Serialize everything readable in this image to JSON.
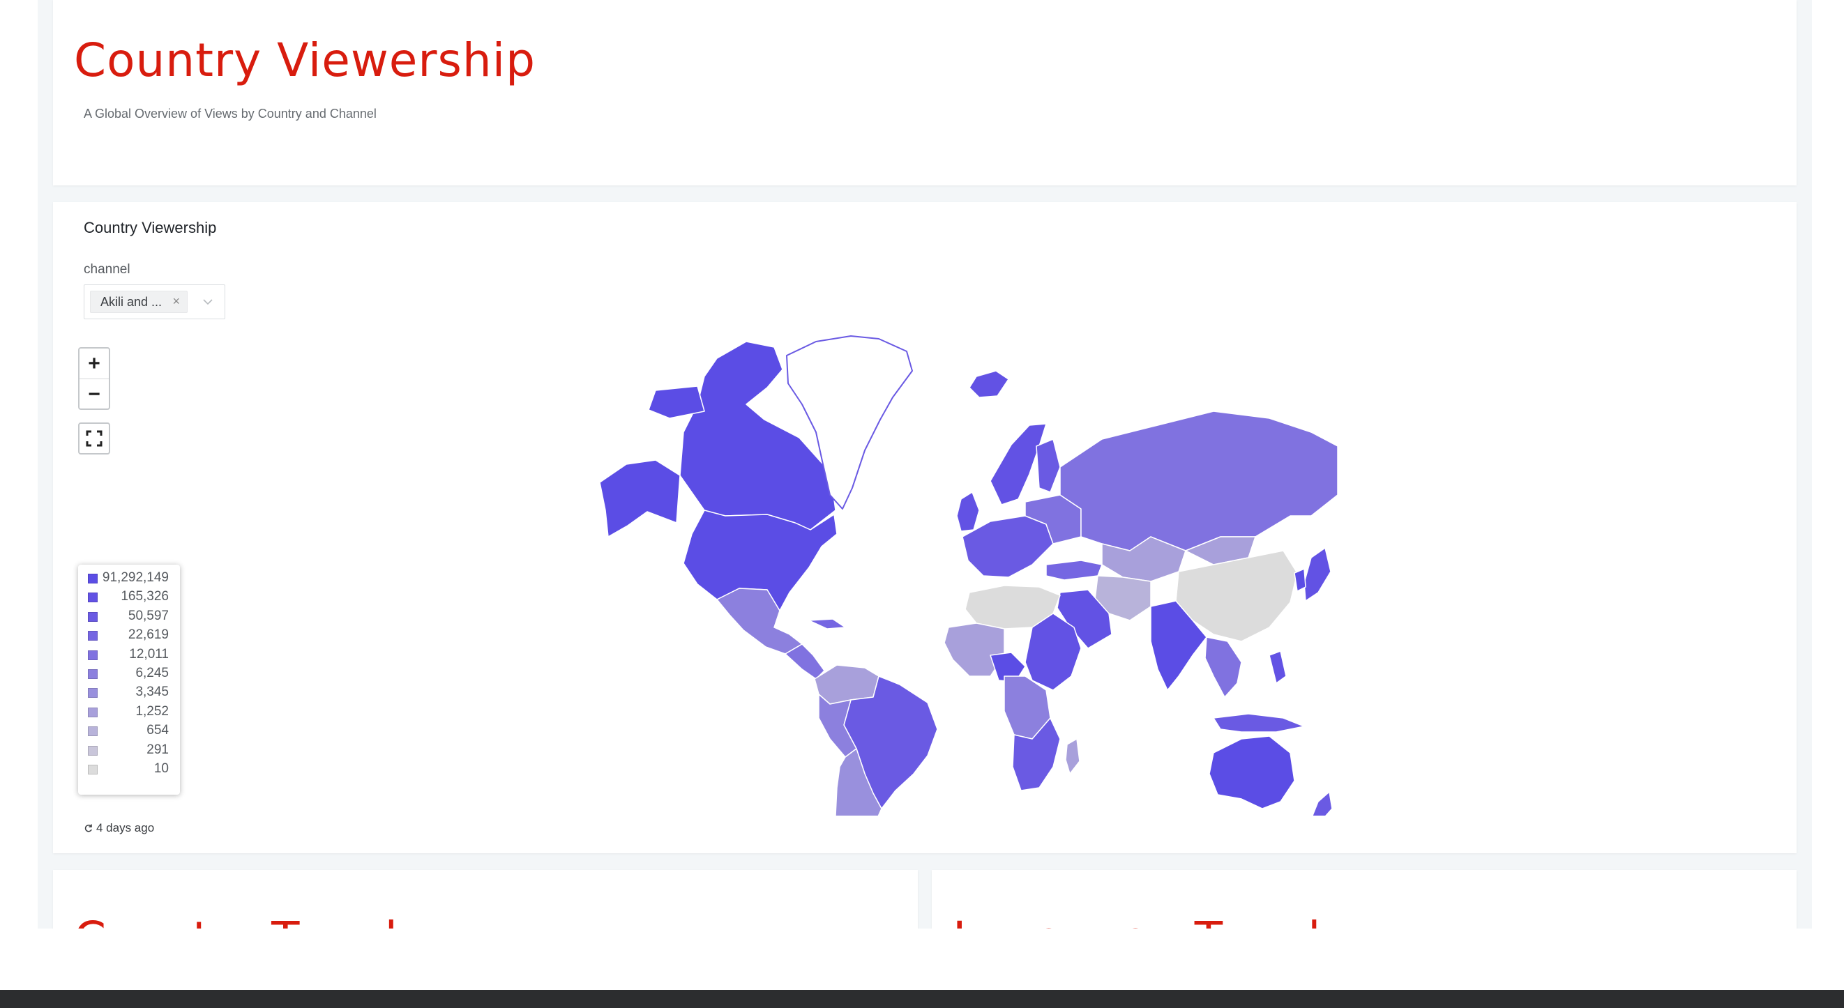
{
  "header": {
    "title": "Country Viewership",
    "subtitle": "A Global Overview of Views by Country and Channel"
  },
  "map_panel": {
    "title": "Country Viewership",
    "filter": {
      "label": "channel",
      "selected_tag": "Akili and ...",
      "remove_glyph": "×",
      "dropdown_icon": "chevron-down-icon"
    },
    "zoom_in_label": "+",
    "zoom_out_label": "−",
    "fullscreen_icon": "fullscreen-icon",
    "refresh_text": "4 days ago"
  },
  "colors": {
    "title_red": "#d81c0e",
    "scale_max": "#5b4de5",
    "scale_min": "#dcdcdc",
    "greenland": "#ffffff"
  },
  "chart_data": {
    "type": "choropleth-map",
    "legend": [
      {
        "label": "91,292,149",
        "color": "#5b4de5"
      },
      {
        "label": "165,326",
        "color": "#6252e4"
      },
      {
        "label": "50,597",
        "color": "#6a5ae3"
      },
      {
        "label": "22,619",
        "color": "#7566e2"
      },
      {
        "label": "12,011",
        "color": "#8072e0"
      },
      {
        "label": "6,245",
        "color": "#8c80de"
      },
      {
        "label": "3,345",
        "color": "#9990dd"
      },
      {
        "label": "1,252",
        "color": "#a8a0db"
      },
      {
        "label": "654",
        "color": "#b8b3da"
      },
      {
        "label": "291",
        "color": "#c9c6da"
      },
      {
        "label": "10",
        "color": "#dcdcdc"
      }
    ]
  },
  "bottom_cards": [
    {
      "title": "Country Trends"
    },
    {
      "title": "Language Trends"
    }
  ]
}
